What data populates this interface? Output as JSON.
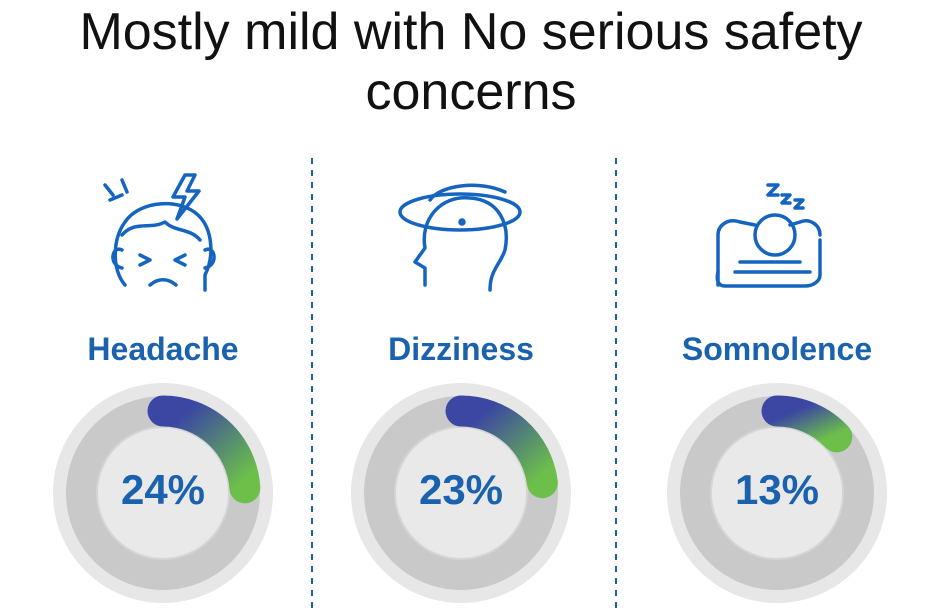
{
  "chart_data": {
    "type": "gauge",
    "title": "Mostly mild with No serious safety concerns",
    "categories": [
      "Headache",
      "Dizziness",
      "Somnolence"
    ],
    "values": [
      24,
      23,
      13
    ],
    "value_labels": [
      "24%",
      "23%",
      "13%"
    ],
    "ylim": [
      0,
      100
    ],
    "color_start": "#3b47a2",
    "color_end": "#6cc04a"
  }
}
